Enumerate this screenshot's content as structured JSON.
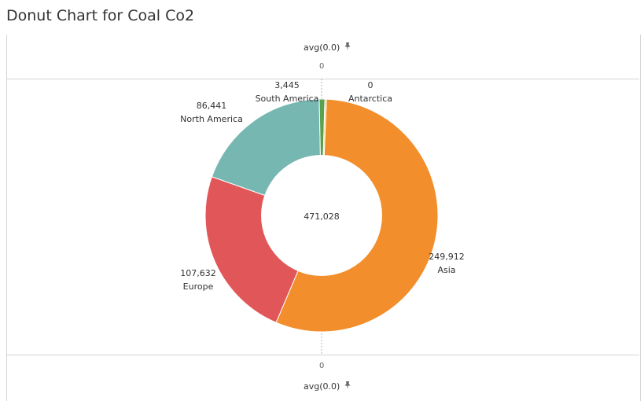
{
  "page": {
    "title": "Donut Chart for Coal Co2"
  },
  "axes": {
    "top_label": "avg(0.0)",
    "top_tick": "0",
    "bottom_tick": "0",
    "bottom_label": "avg(0.0)",
    "pin_icon": "pin-icon"
  },
  "chart_data": {
    "type": "pie",
    "donut": true,
    "center_label": "471,028",
    "slices": [
      {
        "label": "Antarctica",
        "value": 0,
        "value_label": "0",
        "color": "#4e79a7"
      },
      {
        "label": "Asia",
        "value": 249912,
        "value_label": "249,912",
        "color": "#f28e2b"
      },
      {
        "label": "Europe",
        "value": 107632,
        "value_label": "107,632",
        "color": "#e15759"
      },
      {
        "label": "North America",
        "value": 86441,
        "value_label": "86,441",
        "color": "#76b7b2"
      },
      {
        "label": "South America",
        "value": 3445,
        "value_label": "3,445",
        "color": "#59a14f"
      },
      {
        "label": "",
        "value": 1000,
        "value_label": "",
        "color": "#edc948"
      }
    ]
  }
}
